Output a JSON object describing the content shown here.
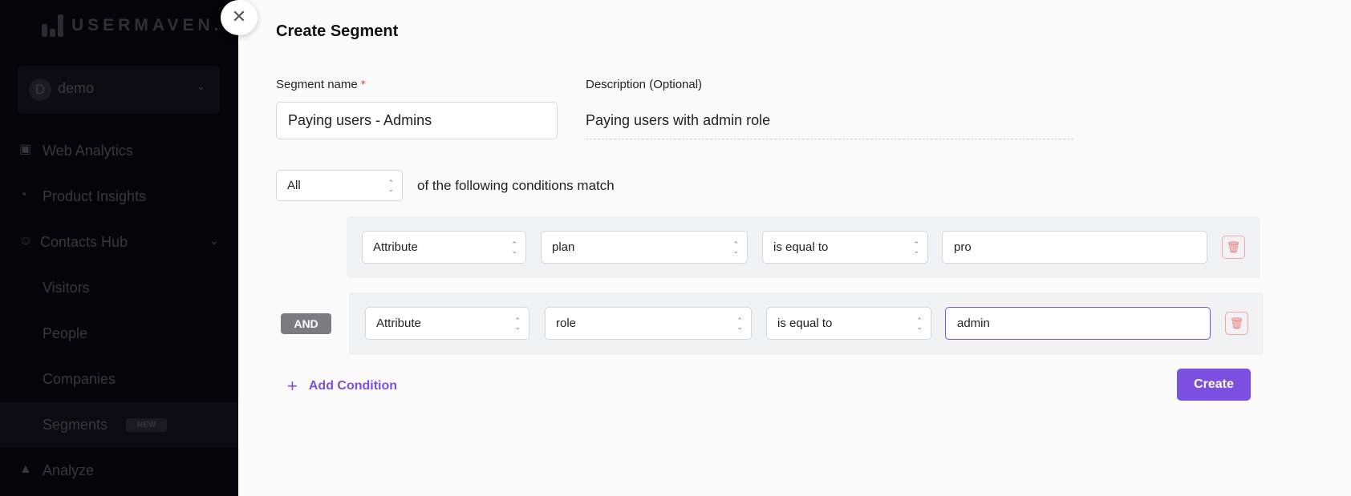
{
  "sidebar": {
    "brand": "USERMAVEN.",
    "workspace": {
      "initial": "D",
      "name": "demo"
    },
    "items": [
      {
        "label": "Web Analytics",
        "icon": "browser-icon"
      },
      {
        "label": "Product Insights",
        "icon": "pie-chart-icon"
      },
      {
        "label": "Contacts Hub",
        "icon": "user-icon",
        "expanded": true
      },
      {
        "label": "Visitors"
      },
      {
        "label": "People"
      },
      {
        "label": "Companies"
      },
      {
        "label": "Segments",
        "badge": "NEW",
        "active": true
      },
      {
        "label": "Analyze",
        "icon": "area-chart-icon"
      }
    ]
  },
  "modal": {
    "title": "Create Segment",
    "segment_name_label": "Segment name",
    "required_mark": "*",
    "segment_name_value": "Paying users - Admins",
    "description_label": "Description (Optional)",
    "description_value": "Paying users with admin role",
    "match_select": "All",
    "match_text": "of the following conditions match",
    "conditions": [
      {
        "type": "Attribute",
        "property": "plan",
        "operator": "is equal to",
        "value": "pro"
      },
      {
        "connector": "AND",
        "type": "Attribute",
        "property": "role",
        "operator": "is equal to",
        "value": "admin",
        "focused": true
      }
    ],
    "add_condition_label": "Add Condition",
    "create_label": "Create"
  },
  "colors": {
    "accent": "#7b4fe0",
    "danger": "#e87f7c",
    "sidebar_bg": "#050509"
  }
}
